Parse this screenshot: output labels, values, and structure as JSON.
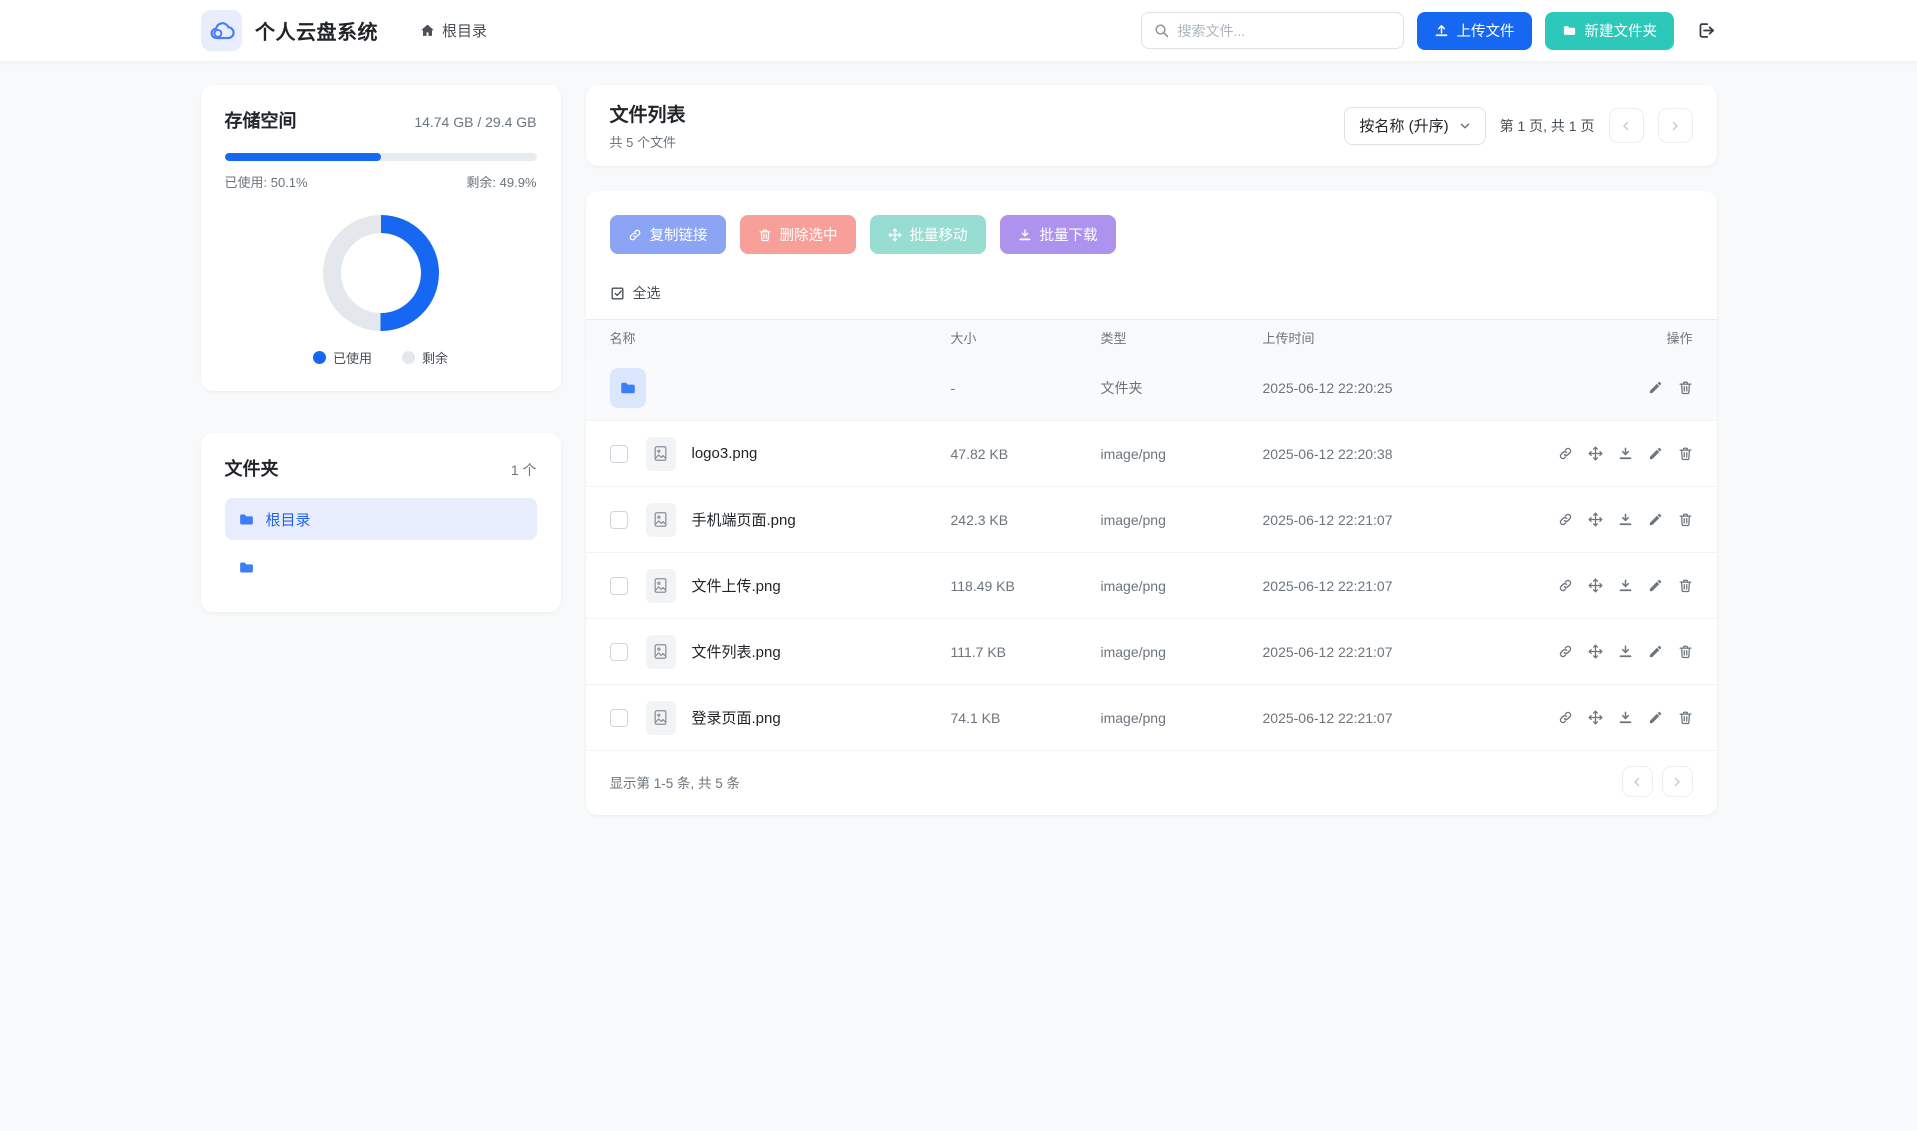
{
  "navbar": {
    "app_title": "个人云盘系统",
    "breadcrumb": "根目录",
    "search_placeholder": "搜索文件...",
    "upload_button": "上传文件",
    "new_folder_button": "新建文件夹"
  },
  "storage": {
    "title": "存储空间",
    "usage_text": "14.74 GB / 29.4 GB",
    "used_label": "已使用: 50.1%",
    "free_label": "剩余: 49.9%",
    "used_percent": 50.1,
    "legend": [
      {
        "label": "已使用",
        "color": "#1668f2"
      },
      {
        "label": "剩余",
        "color": "#e4e7eb"
      }
    ]
  },
  "folders": {
    "title": "文件夹",
    "count_text": "1 个",
    "items": [
      {
        "name": "根目录",
        "active": true
      },
      {
        "name": "",
        "active": false
      }
    ]
  },
  "filelist": {
    "title": "文件列表",
    "subtitle": "共 5 个文件",
    "sort_label": "按名称 (升序)",
    "page_info": "第 1 页, 共 1 页",
    "select_all_label": "全选",
    "batch_buttons": [
      {
        "label": "复制链接",
        "icon": "link",
        "color": "#8ca4f4",
        "name": "copy-link-button"
      },
      {
        "label": "删除选中",
        "icon": "trash",
        "color": "#f7a09a",
        "name": "delete-selected-button"
      },
      {
        "label": "批量移动",
        "icon": "move",
        "color": "#98ddd2",
        "name": "batch-move-button"
      },
      {
        "label": "批量下载",
        "icon": "download",
        "color": "#ad93ee",
        "name": "batch-download-button"
      }
    ],
    "columns": [
      "名称",
      "大小",
      "类型",
      "上传时间",
      "操作"
    ],
    "rows": [
      {
        "kind": "folder",
        "name": "",
        "size": "-",
        "mime": "文件夹",
        "time": "2025-06-12 22:20:25",
        "actions": [
          "edit",
          "delete"
        ]
      },
      {
        "kind": "file",
        "name": "logo3.png",
        "size": "47.82 KB",
        "mime": "image/png",
        "time": "2025-06-12 22:20:38",
        "actions": [
          "link",
          "move",
          "download",
          "edit",
          "delete"
        ]
      },
      {
        "kind": "file",
        "name": "手机端页面.png",
        "size": "242.3 KB",
        "mime": "image/png",
        "time": "2025-06-12 22:21:07",
        "actions": [
          "link",
          "move",
          "download",
          "edit",
          "delete"
        ]
      },
      {
        "kind": "file",
        "name": "文件上传.png",
        "size": "118.49 KB",
        "mime": "image/png",
        "time": "2025-06-12 22:21:07",
        "actions": [
          "link",
          "move",
          "download",
          "edit",
          "delete"
        ]
      },
      {
        "kind": "file",
        "name": "文件列表.png",
        "size": "111.7 KB",
        "mime": "image/png",
        "time": "2025-06-12 22:21:07",
        "actions": [
          "link",
          "move",
          "download",
          "edit",
          "delete"
        ]
      },
      {
        "kind": "file",
        "name": "登录页面.png",
        "size": "74.1 KB",
        "mime": "image/png",
        "time": "2025-06-12 22:21:07",
        "actions": [
          "link",
          "move",
          "download",
          "edit",
          "delete"
        ]
      }
    ],
    "footer_text": "显示第 1-5 条, 共 5 条"
  },
  "icons": {
    "logo": "cloud-icon",
    "breadcrumb": "home-icon",
    "search": "search-icon",
    "upload": "upload-icon",
    "new_folder": "folder-icon",
    "logout": "sign-out-icon",
    "select_all": "check-square-icon",
    "sort": "chevron-down-icon",
    "pagination": [
      "chevron-left-icon",
      "chevron-right-icon"
    ],
    "row_actions": [
      "copy-link-icon",
      "move-icon",
      "download-icon",
      "edit-icon",
      "delete-icon"
    ]
  }
}
